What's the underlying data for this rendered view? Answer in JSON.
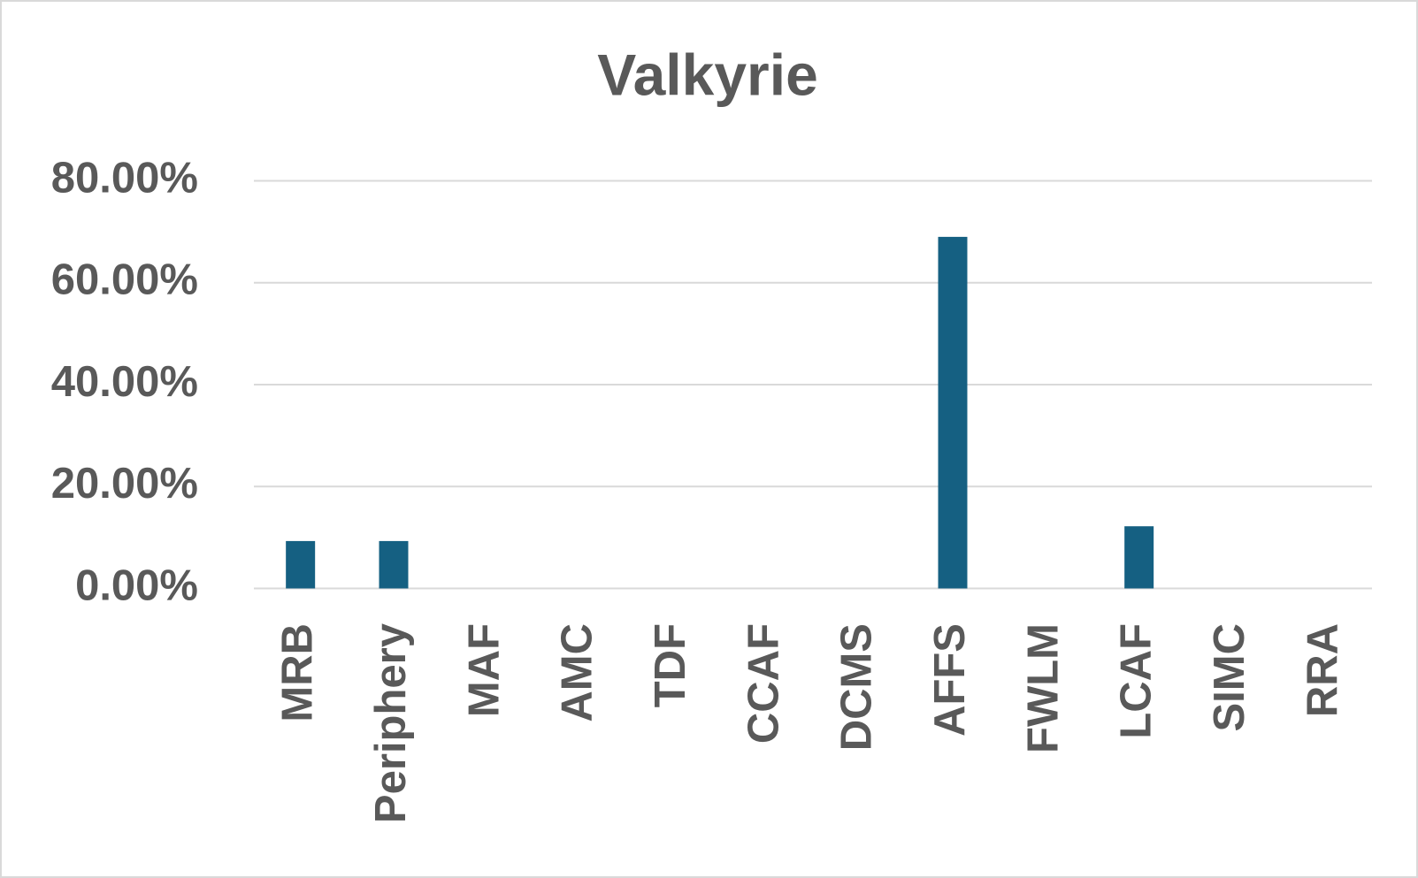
{
  "chart_data": {
    "type": "bar",
    "title": "Valkyrie",
    "categories": [
      "MRB",
      "Periphery",
      "MAF",
      "AMC",
      "TDF",
      "CCAF",
      "DCMS",
      "AFFS",
      "FWLM",
      "LCAF",
      "SIMC",
      "RRA"
    ],
    "values": [
      9.3,
      9.3,
      0,
      0,
      0,
      0,
      0,
      69,
      0,
      12.2,
      0,
      0
    ],
    "color": "#156082",
    "ylim": [
      0,
      80
    ],
    "yticks": [
      {
        "value": 0,
        "label": "0.00%"
      },
      {
        "value": 20,
        "label": "20.00%"
      },
      {
        "value": 40,
        "label": "40.00%"
      },
      {
        "value": 60,
        "label": "60.00%"
      },
      {
        "value": 80,
        "label": "80.00%"
      }
    ],
    "grid": true
  }
}
